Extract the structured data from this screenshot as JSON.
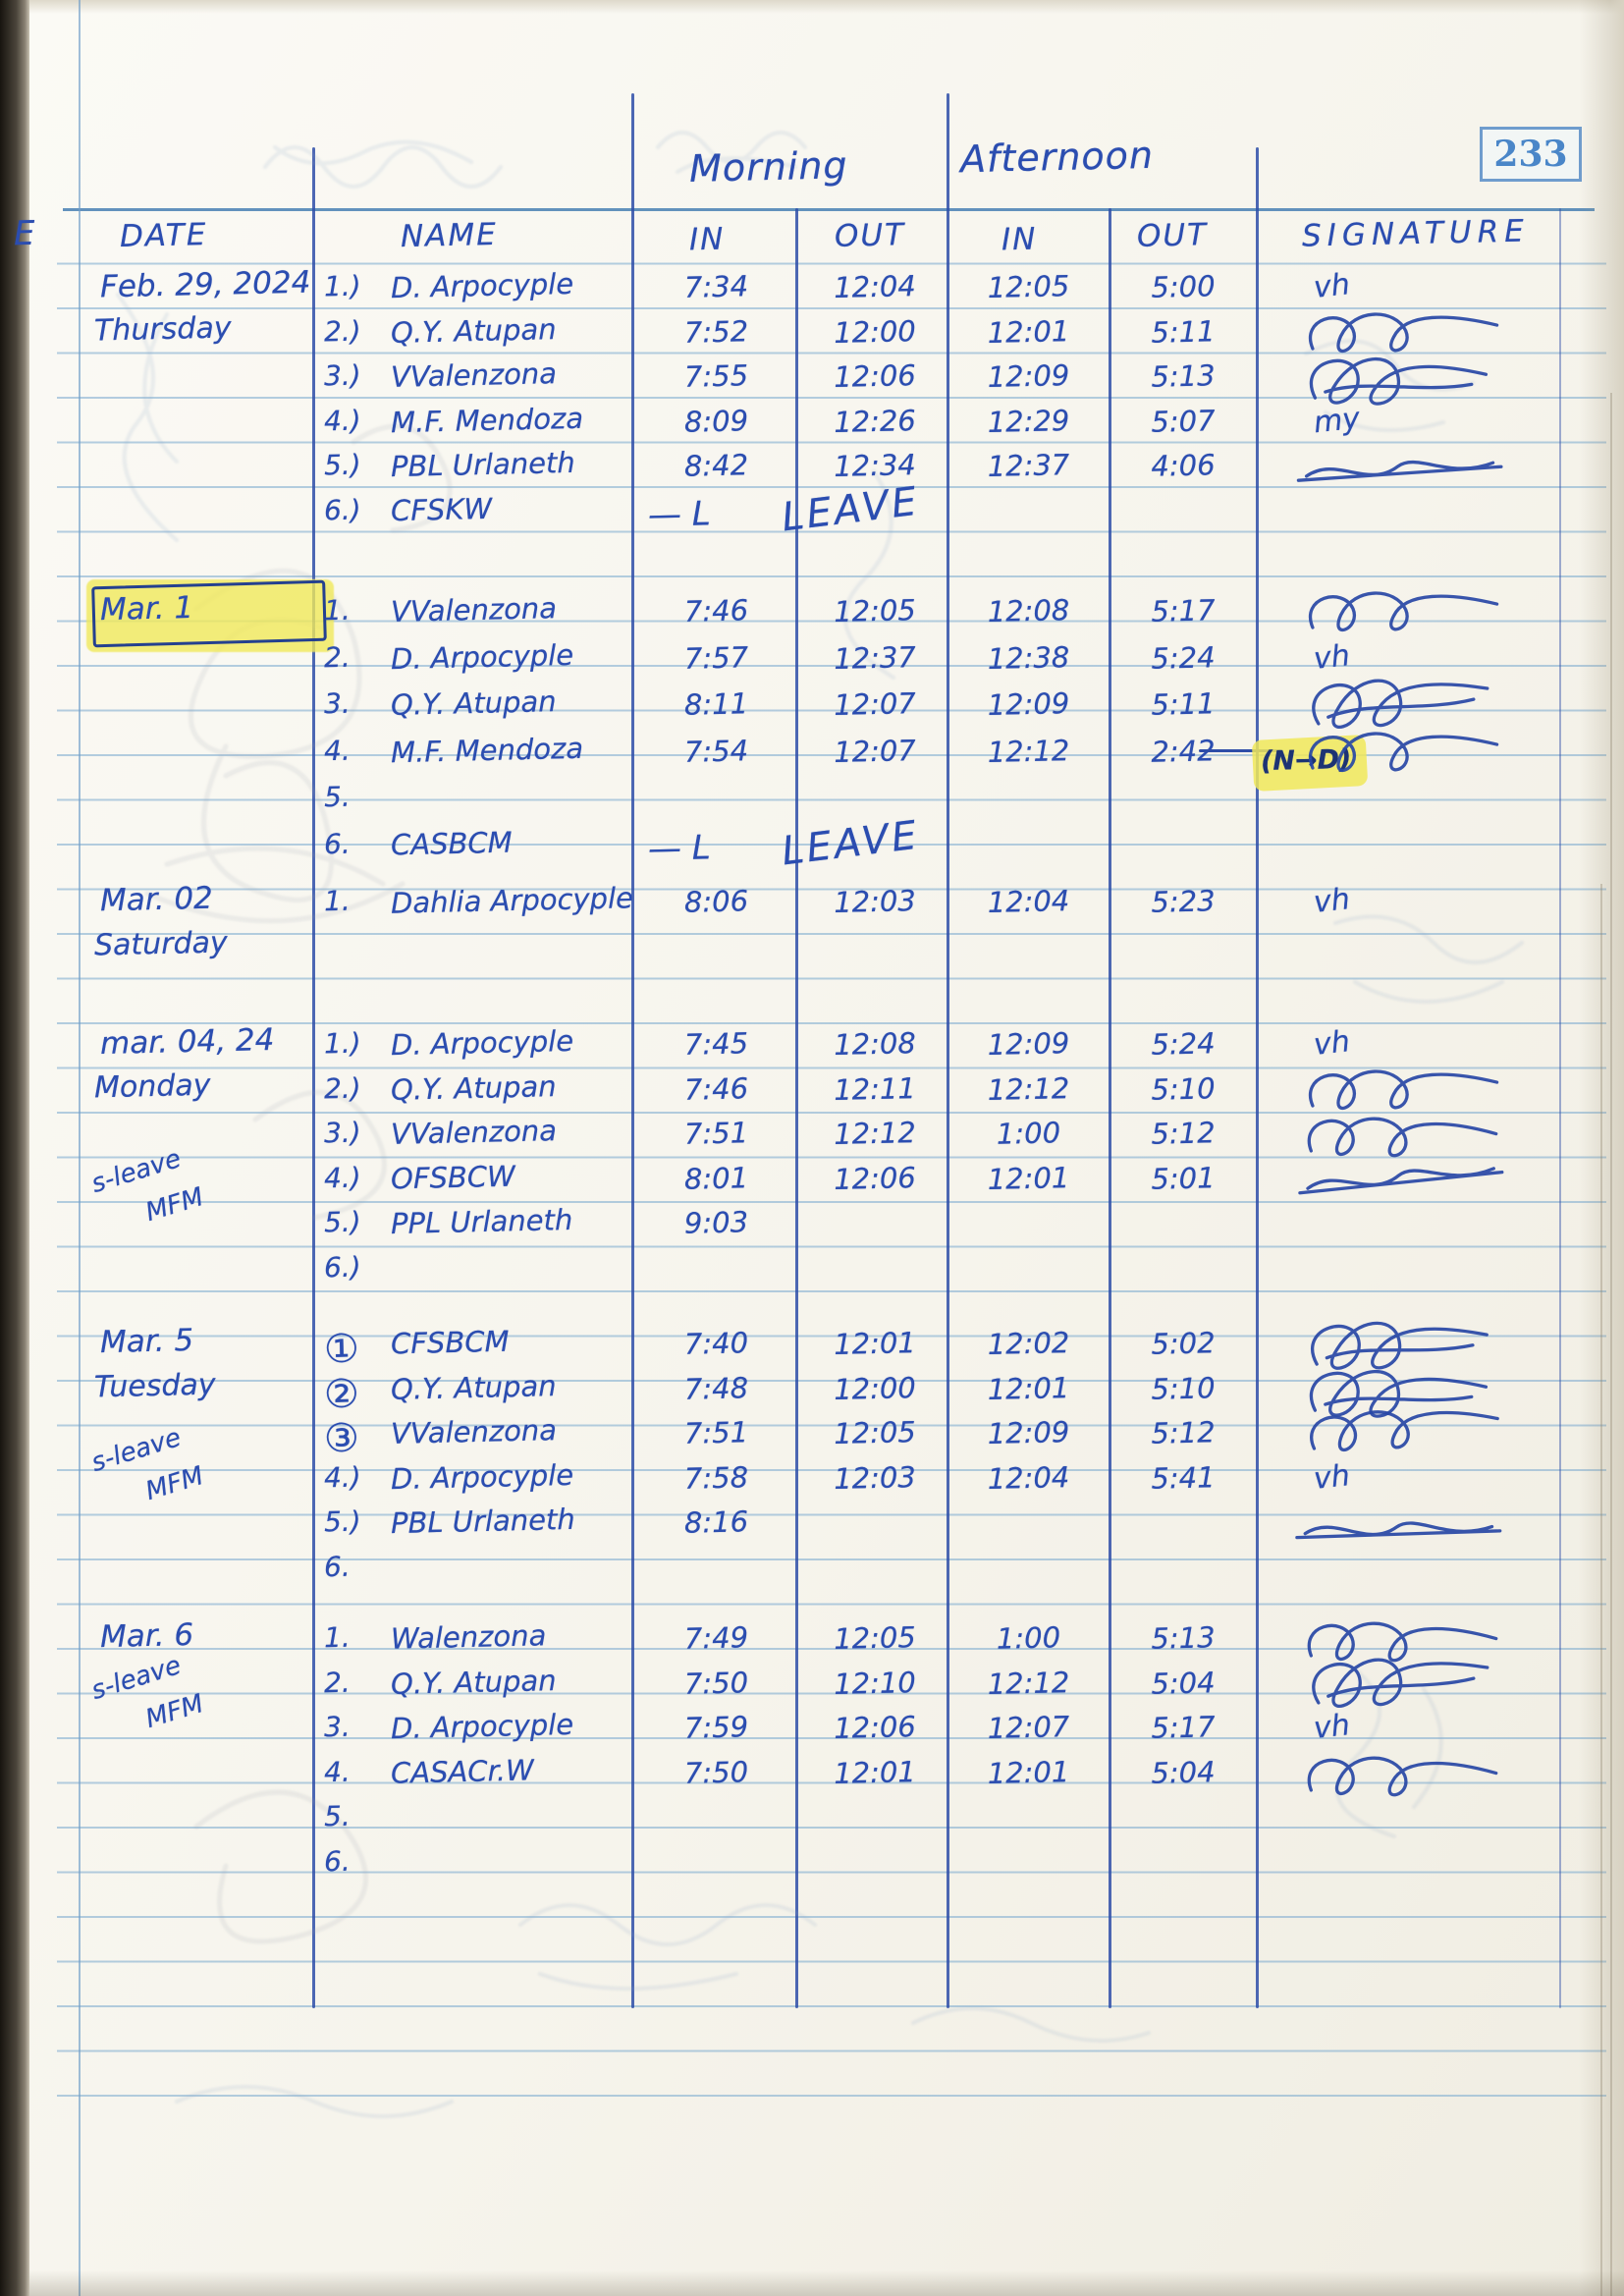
{
  "page": {
    "number": "233",
    "left_edge_fragment": "E"
  },
  "colors": {
    "ink_blue": "#2b4db0",
    "printed_blue": "#4a86c8",
    "ruling_blue": "#78a8ce",
    "highlighter_yellow": "#f0e85a",
    "paper": "#f6f4ec"
  },
  "header": {
    "morning": "Morning",
    "afternoon": "Afternoon",
    "columns": {
      "date": "DATE",
      "name": "NAME",
      "in": "IN",
      "out": "OUT",
      "signature": "SIGNATURE"
    }
  },
  "blocks": [
    {
      "id": "feb29",
      "date_line1": "Feb. 29, 2024",
      "date_line2": "Thursday",
      "highlighted": false,
      "side_note1": "",
      "side_note2": "",
      "entries": [
        {
          "no": "1.)",
          "name": "D. Arpocyple",
          "m_in": "7:34",
          "m_out": "12:04",
          "a_in": "12:05",
          "a_out": "5:00",
          "sig": "vh"
        },
        {
          "no": "2.)",
          "name": "Q.Y. Atupan",
          "m_in": "7:52",
          "m_out": "12:00",
          "a_in": "12:01",
          "a_out": "5:11",
          "sig": "flourish"
        },
        {
          "no": "3.)",
          "name": "VValenzona",
          "m_in": "7:55",
          "m_out": "12:06",
          "a_in": "12:09",
          "a_out": "5:13",
          "sig": "scribble"
        },
        {
          "no": "4.)",
          "name": "M.F. Mendoza",
          "m_in": "8:09",
          "m_out": "12:26",
          "a_in": "12:29",
          "a_out": "5:07",
          "sig": "my"
        },
        {
          "no": "5.)",
          "name": "PBL Urlaneth",
          "m_in": "8:42",
          "m_out": "12:34",
          "a_in": "12:37",
          "a_out": "4:06",
          "sig": "cross"
        },
        {
          "no": "6.)",
          "name": "CFSKW",
          "leave": "LEAVE",
          "sig": ""
        }
      ]
    },
    {
      "id": "mar1",
      "date_line1": "Mar. 1",
      "date_line2": "",
      "highlighted": true,
      "side_note1": "",
      "side_note2": "",
      "entries": [
        {
          "no": "1.",
          "name": "VValenzona",
          "m_in": "7:46",
          "m_out": "12:05",
          "a_in": "12:08",
          "a_out": "5:17",
          "sig": "flourish"
        },
        {
          "no": "2.",
          "name": "D. Arpocyple",
          "m_in": "7:57",
          "m_out": "12:37",
          "a_in": "12:38",
          "a_out": "5:24",
          "sig": "vh"
        },
        {
          "no": "3.",
          "name": "Q.Y. Atupan",
          "m_in": "8:11",
          "m_out": "12:07",
          "a_in": "12:09",
          "a_out": "5:11",
          "sig": "scribble"
        },
        {
          "no": "4.",
          "name": "M.F. Mendoza",
          "m_in": "7:54",
          "m_out": "12:07",
          "a_in": "12:12",
          "a_out": "2:42",
          "sig": "flourish",
          "note": "(N→D)"
        },
        {
          "no": "5."
        },
        {
          "no": "6.",
          "name": "CASBCM",
          "leave": "LEAVE",
          "sig": ""
        }
      ]
    },
    {
      "id": "mar02",
      "date_line1": "Mar. 02",
      "date_line2": "Saturday",
      "highlighted": false,
      "side_note1": "",
      "side_note2": "",
      "entries": [
        {
          "no": "1.",
          "name": "Dahlia Arpocyple",
          "m_in": "8:06",
          "m_out": "12:03",
          "a_in": "12:04",
          "a_out": "5:23",
          "sig": "vh"
        }
      ]
    },
    {
      "id": "mar04",
      "date_line1": "mar. 04, 24",
      "date_line2": "Monday",
      "highlighted": false,
      "side_note1": "s-leave",
      "side_note2": "MFM",
      "entries": [
        {
          "no": "1.)",
          "name": "D. Arpocyple",
          "m_in": "7:45",
          "m_out": "12:08",
          "a_in": "12:09",
          "a_out": "5:24",
          "sig": "vh"
        },
        {
          "no": "2.)",
          "name": "Q.Y. Atupan",
          "m_in": "7:46",
          "m_out": "12:11",
          "a_in": "12:12",
          "a_out": "5:10",
          "sig": "flourish"
        },
        {
          "no": "3.)",
          "name": "VValenzona",
          "m_in": "7:51",
          "m_out": "12:12",
          "a_in": "1:00",
          "a_out": "5:12",
          "sig": "flourish"
        },
        {
          "no": "4.)",
          "name": "OFSBCW",
          "m_in": "8:01",
          "m_out": "12:06",
          "a_in": "12:01",
          "a_out": "5:01",
          "sig": "cross"
        },
        {
          "no": "5.)",
          "name": "PPL Urlaneth",
          "m_in": "9:03",
          "m_out": "",
          "a_in": "",
          "a_out": "",
          "sig": ""
        },
        {
          "no": "6.)"
        }
      ]
    },
    {
      "id": "mar5",
      "date_line1": "Mar. 5",
      "date_line2": "Tuesday",
      "highlighted": false,
      "side_note1": "s-leave",
      "side_note2": "MFM",
      "entries": [
        {
          "no": "①",
          "name": "CFSBCM",
          "m_in": "7:40",
          "m_out": "12:01",
          "a_in": "12:02",
          "a_out": "5:02",
          "sig": "scribble"
        },
        {
          "no": "②",
          "name": "Q.Y. Atupan",
          "m_in": "7:48",
          "m_out": "12:00",
          "a_in": "12:01",
          "a_out": "5:10",
          "sig": "scribble"
        },
        {
          "no": "③",
          "name": "VValenzona",
          "m_in": "7:51",
          "m_out": "12:05",
          "a_in": "12:09",
          "a_out": "5:12",
          "sig": "flourish"
        },
        {
          "no": "4.)",
          "name": "D. Arpocyple",
          "m_in": "7:58",
          "m_out": "12:03",
          "a_in": "12:04",
          "a_out": "5:41",
          "sig": "vh"
        },
        {
          "no": "5.)",
          "name": "PBL Urlaneth",
          "m_in": "8:16",
          "m_out": "",
          "a_in": "",
          "a_out": "",
          "sig": "cross"
        },
        {
          "no": "6."
        }
      ]
    },
    {
      "id": "mar6",
      "date_line1": "Mar. 6",
      "date_line2": "",
      "highlighted": false,
      "side_note1": "s-leave",
      "side_note2": "MFM",
      "entries": [
        {
          "no": "1.",
          "name": "Walenzona",
          "m_in": "7:49",
          "m_out": "12:05",
          "a_in": "1:00",
          "a_out": "5:13",
          "sig": "flourish"
        },
        {
          "no": "2.",
          "name": "Q.Y. Atupan",
          "m_in": "7:50",
          "m_out": "12:10",
          "a_in": "12:12",
          "a_out": "5:04",
          "sig": "scribble"
        },
        {
          "no": "3.",
          "name": "D. Arpocyple",
          "m_in": "7:59",
          "m_out": "12:06",
          "a_in": "12:07",
          "a_out": "5:17",
          "sig": "vh"
        },
        {
          "no": "4.",
          "name": "CASACr.W",
          "m_in": "7:50",
          "m_out": "12:01",
          "a_in": "12:01",
          "a_out": "5:04",
          "sig": "flourish"
        },
        {
          "no": "5."
        },
        {
          "no": "6."
        }
      ]
    }
  ]
}
